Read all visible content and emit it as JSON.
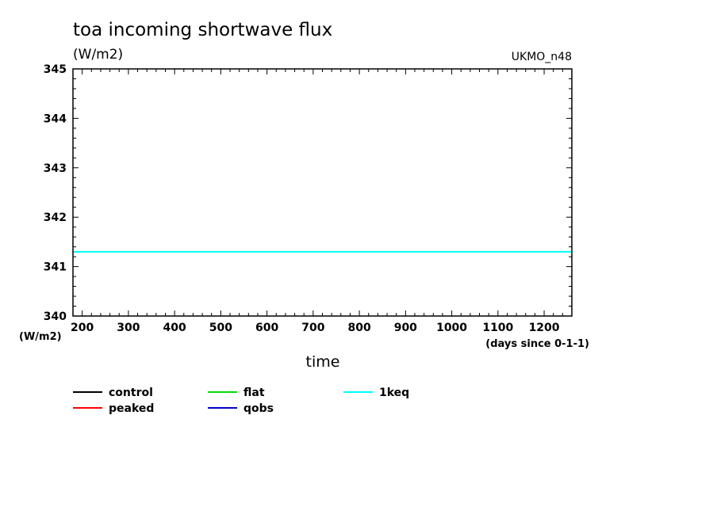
{
  "chart_data": {
    "type": "line",
    "title": "toa incoming shortwave flux",
    "units": "(W/m2)",
    "model": "UKMO_n48",
    "xlabel": "time",
    "x_units": "(days since 0-1-1)",
    "ylabel": "(W/m2)",
    "xlim": [
      180,
      1260
    ],
    "ylim": [
      340,
      345
    ],
    "x_ticks": [
      200,
      300,
      400,
      500,
      600,
      700,
      800,
      900,
      1000,
      1100,
      1200
    ],
    "y_ticks": [
      340,
      341,
      342,
      343,
      344,
      345
    ],
    "grid": false,
    "legend_placement": "bottom",
    "series": [
      {
        "name": "control",
        "color": "#000000",
        "x": [],
        "y": []
      },
      {
        "name": "peaked",
        "color": "#ff0000",
        "x": [],
        "y": []
      },
      {
        "name": "flat",
        "color": "#00dd00",
        "x": [],
        "y": []
      },
      {
        "name": "qobs",
        "color": "#0000cc",
        "x": [],
        "y": []
      },
      {
        "name": "1keq",
        "color": "#00ffff",
        "x": [
          180,
          1260
        ],
        "y": [
          341.3,
          341.3
        ]
      }
    ]
  }
}
